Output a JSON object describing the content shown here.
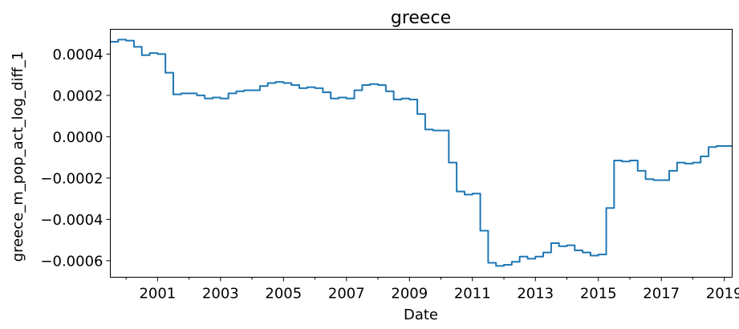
{
  "chart_data": {
    "type": "line",
    "title": "greece",
    "xlabel": "Date",
    "ylabel": "greece_m_pop_act_log_diff_1",
    "xlim": [
      "2000-01",
      "2019-10"
    ],
    "ylim": [
      -0.00068,
      0.00052
    ],
    "grid": false,
    "legend": "none",
    "x_tick_labels": [
      "2001",
      "2003",
      "2005",
      "2007",
      "2009",
      "2011",
      "2013",
      "2015",
      "2017",
      "2019"
    ],
    "y_ticks": [
      {
        "value": 0.0004,
        "label": "0.0004"
      },
      {
        "value": 0.0002,
        "label": "0.0002"
      },
      {
        "value": 0.0,
        "label": "0.0000"
      },
      {
        "value": -0.0002,
        "label": "−0.0002"
      },
      {
        "value": -0.0004,
        "label": "−0.0004"
      },
      {
        "value": -0.0006,
        "label": "−0.0006"
      }
    ],
    "series": [
      {
        "color": "#1f77b4",
        "x": [
          "2000-01",
          "2000-04",
          "2000-07",
          "2000-10",
          "2001-01",
          "2001-04",
          "2001-07",
          "2001-10",
          "2002-01",
          "2002-04",
          "2002-07",
          "2002-10",
          "2003-01",
          "2003-04",
          "2003-07",
          "2003-10",
          "2004-01",
          "2004-04",
          "2004-07",
          "2004-10",
          "2005-01",
          "2005-04",
          "2005-07",
          "2005-10",
          "2006-01",
          "2006-04",
          "2006-07",
          "2006-10",
          "2007-01",
          "2007-04",
          "2007-07",
          "2007-10",
          "2008-01",
          "2008-04",
          "2008-07",
          "2008-10",
          "2009-01",
          "2009-04",
          "2009-07",
          "2009-10",
          "2010-01",
          "2010-04",
          "2010-07",
          "2010-10",
          "2011-01",
          "2011-04",
          "2011-07",
          "2011-10",
          "2012-01",
          "2012-04",
          "2012-07",
          "2012-10",
          "2013-01",
          "2013-04",
          "2013-07",
          "2013-10",
          "2014-01",
          "2014-04",
          "2014-07",
          "2014-10",
          "2015-01",
          "2015-04",
          "2015-07",
          "2015-10",
          "2016-01",
          "2016-04",
          "2016-07",
          "2016-10",
          "2017-01",
          "2017-04",
          "2017-07",
          "2017-10",
          "2018-01",
          "2018-04",
          "2018-07",
          "2018-10",
          "2019-01",
          "2019-04",
          "2019-07",
          "2019-10"
        ],
        "y": [
          0.00046,
          0.00047,
          0.000465,
          0.000435,
          0.000395,
          0.000405,
          0.0004,
          0.00031,
          0.000205,
          0.00021,
          0.00021,
          0.0002,
          0.000185,
          0.00019,
          0.000185,
          0.00021,
          0.00022,
          0.000225,
          0.000225,
          0.000245,
          0.00026,
          0.000265,
          0.00026,
          0.00025,
          0.000235,
          0.00024,
          0.000235,
          0.000215,
          0.000185,
          0.00019,
          0.000185,
          0.000225,
          0.00025,
          0.000255,
          0.00025,
          0.00022,
          0.00018,
          0.000185,
          0.00018,
          0.00011,
          3.5e-05,
          3e-05,
          3e-05,
          -0.000125,
          -0.000265,
          -0.00028,
          -0.000275,
          -0.000455,
          -0.00061,
          -0.000625,
          -0.00062,
          -0.000605,
          -0.00058,
          -0.00059,
          -0.00058,
          -0.00056,
          -0.000515,
          -0.00053,
          -0.000525,
          -0.00055,
          -0.00056,
          -0.000575,
          -0.00057,
          -0.000345,
          -0.000115,
          -0.00012,
          -0.000115,
          -0.000165,
          -0.000205,
          -0.00021,
          -0.00021,
          -0.000165,
          -0.000125,
          -0.00013,
          -0.000125,
          -9.5e-05,
          -5e-05,
          -4.5e-05,
          -4.5e-05,
          -4.5e-05
        ]
      }
    ]
  }
}
